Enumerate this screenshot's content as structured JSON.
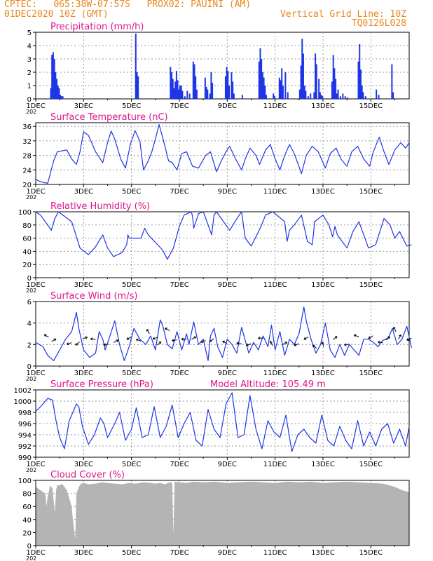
{
  "header": {
    "line1": "CPTEC:   065:38W-07:57S   PROX02: PAUINI (AM)",
    "line2": "01DEC2020 10Z (GMT)",
    "grid_note": "Vertical Grid Line: 10Z",
    "code": "TQ0126L028"
  },
  "colors": {
    "header": "#e8861d",
    "title": "#e0158a",
    "line": "#1e35e6",
    "cloud": "#b4b4b4"
  },
  "x_tick_labels": [
    "1DEC",
    "3DEC",
    "5DEC",
    "7DEC",
    "9DEC",
    "11DEC",
    "13DEC",
    "15DEC"
  ],
  "x_clipped_label": "202",
  "chart_data": [
    {
      "type": "bar",
      "title": "Precipitation (mm/h)",
      "x_unit": "days since 01DEC 10Z",
      "ylim": [
        0,
        5
      ],
      "yticks": [
        0,
        1,
        2,
        3,
        4,
        5
      ],
      "x": [
        0.6,
        0.65,
        0.7,
        0.75,
        0.8,
        0.85,
        0.9,
        0.95,
        1.0,
        1.05,
        1.1,
        4.15,
        4.2,
        4.25,
        5.6,
        5.65,
        5.7,
        5.75,
        5.8,
        5.85,
        5.9,
        5.95,
        6.0,
        6.05,
        6.1,
        6.2,
        6.3,
        6.4,
        6.55,
        6.6,
        6.65,
        6.7,
        7.05,
        7.1,
        7.15,
        7.25,
        7.3,
        7.35,
        7.9,
        7.95,
        8.0,
        8.05,
        8.15,
        8.2,
        8.25,
        8.6,
        9.3,
        9.35,
        9.4,
        9.45,
        9.5,
        9.55,
        9.6,
        9.9,
        9.95,
        10.15,
        10.2,
        10.25,
        10.3,
        10.4,
        10.5,
        11.0,
        11.05,
        11.1,
        11.15,
        11.2,
        11.25,
        11.35,
        11.45,
        11.6,
        11.65,
        11.7,
        11.8,
        11.85,
        11.9,
        11.95,
        12.35,
        12.4,
        12.45,
        12.5,
        12.55,
        12.6,
        12.7,
        12.8,
        12.9,
        13.0,
        13.45,
        13.5,
        13.55,
        13.6,
        13.65,
        13.75,
        14.2,
        14.3,
        14.85,
        14.9
      ],
      "values": [
        0.8,
        3.3,
        3.5,
        3.0,
        2.0,
        1.5,
        1.0,
        0.8,
        0.3,
        0.2,
        0.2,
        4.9,
        2.0,
        1.7,
        2.4,
        2.0,
        1.5,
        0.8,
        1.3,
        2.1,
        1.4,
        0.7,
        1.0,
        1.0,
        0.6,
        0.2,
        0.6,
        0.4,
        2.8,
        2.6,
        1.7,
        0.7,
        1.6,
        0.9,
        0.7,
        0.4,
        2.0,
        1.2,
        1.7,
        2.4,
        2.1,
        1.0,
        2.0,
        1.3,
        0.4,
        0.3,
        2.8,
        3.8,
        3.0,
        2.0,
        1.6,
        1.0,
        0.3,
        0.4,
        0.2,
        1.6,
        1.4,
        2.3,
        1.0,
        2.0,
        0.5,
        0.7,
        2.5,
        4.5,
        3.4,
        1.0,
        0.6,
        0.2,
        0.4,
        0.5,
        3.4,
        2.6,
        1.5,
        0.5,
        0.3,
        0.2,
        1.3,
        3.3,
        2.3,
        1.5,
        0.4,
        0.7,
        0.2,
        0.4,
        0.2,
        0.1,
        2.8,
        4.1,
        2.2,
        1.0,
        0.5,
        0.2,
        0.7,
        0.3,
        2.6,
        0.5
      ]
    },
    {
      "type": "line",
      "title": "Surface Temperature (nC)",
      "x_unit": "days since 01DEC 10Z",
      "ylim": [
        20,
        37
      ],
      "yticks": [
        20,
        24,
        28,
        32,
        36
      ],
      "x": [
        0,
        0.1,
        0.2,
        0.35,
        0.5,
        0.75,
        0.9,
        1.3,
        1.5,
        1.7,
        1.85,
        2.0,
        2.2,
        2.5,
        2.8,
        3.0,
        3.15,
        3.3,
        3.55,
        3.75,
        3.95,
        4.15,
        4.35,
        4.5,
        4.7,
        4.85,
        5.0,
        5.15,
        5.3,
        5.55,
        5.7,
        5.9,
        6.1,
        6.3,
        6.55,
        6.8,
        7.1,
        7.3,
        7.55,
        7.75,
        7.95,
        8.1,
        8.35,
        8.6,
        8.75,
        8.95,
        9.2,
        9.35,
        9.6,
        9.8,
        10.0,
        10.2,
        10.4,
        10.6,
        10.8,
        11.1,
        11.3,
        11.55,
        11.8,
        12.1,
        12.3,
        12.55,
        12.75,
        13.0,
        13.2,
        13.45,
        13.7,
        13.95,
        14.1,
        14.35,
        14.55,
        14.75,
        15.0,
        15.25,
        15.45,
        15.6
      ],
      "values": [
        21.5,
        21.0,
        20.8,
        20.5,
        20.3,
        26.5,
        29.0,
        29.5,
        27.0,
        25.5,
        29.0,
        34.5,
        33.5,
        29.0,
        26.0,
        31.5,
        34.7,
        32.5,
        27.0,
        24.5,
        31.0,
        34.8,
        32.0,
        24.0,
        26.5,
        29.0,
        32.5,
        36.5,
        33.0,
        26.5,
        26.0,
        24.0,
        28.5,
        29.0,
        25.0,
        24.5,
        28.0,
        29.0,
        23.5,
        26.5,
        29.0,
        30.5,
        27.0,
        24.0,
        27.0,
        30.0,
        28.0,
        25.5,
        29.5,
        31.0,
        27.0,
        24.0,
        28.0,
        31.0,
        28.5,
        23.0,
        28.0,
        30.5,
        29.0,
        24.5,
        28.5,
        30.0,
        27.0,
        25.0,
        29.0,
        30.5,
        27.0,
        25.0,
        29.0,
        33.0,
        29.0,
        25.5,
        29.5,
        31.5,
        30.0,
        31.5
      ]
    },
    {
      "type": "line",
      "title": "Relative Humidity (%)",
      "x_unit": "days since 01DEC 10Z",
      "ylim": [
        0,
        100
      ],
      "yticks": [
        0,
        20,
        40,
        60,
        80,
        100
      ],
      "x": [
        0,
        0.2,
        0.5,
        0.65,
        0.8,
        0.95,
        1.5,
        1.7,
        1.85,
        2.2,
        2.5,
        2.8,
        3.0,
        3.25,
        3.6,
        3.8,
        3.85,
        3.9,
        4.4,
        4.55,
        4.7,
        5.3,
        5.5,
        5.75,
        6.0,
        6.2,
        6.5,
        6.55,
        6.6,
        6.8,
        7.0,
        7.15,
        7.35,
        7.45,
        7.55,
        8.1,
        8.5,
        8.6,
        8.75,
        9.0,
        9.2,
        9.4,
        9.6,
        9.9,
        10.4,
        10.5,
        10.6,
        10.8,
        11.1,
        11.35,
        11.55,
        11.6,
        11.65,
        12.0,
        12.25,
        12.4,
        12.5,
        12.6,
        13.0,
        13.25,
        13.5,
        13.9,
        14.2,
        14.55,
        14.8,
        15.0,
        15.2,
        15.5,
        15.7
      ],
      "values": [
        100,
        95,
        80,
        72,
        90,
        100,
        85,
        62,
        45,
        35,
        47,
        65,
        45,
        32,
        38,
        50,
        65,
        60,
        60,
        75,
        65,
        42,
        28,
        45,
        78,
        95,
        100,
        93,
        75,
        97,
        100,
        85,
        65,
        95,
        100,
        72,
        95,
        100,
        60,
        48,
        62,
        77,
        95,
        100,
        85,
        55,
        72,
        80,
        95,
        55,
        50,
        65,
        85,
        95,
        80,
        62,
        78,
        65,
        45,
        70,
        85,
        45,
        50,
        90,
        80,
        60,
        70,
        48,
        50
      ]
    },
    {
      "type": "line",
      "title": "Surface Wind (m/s)",
      "x_unit": "days since 01DEC 10Z",
      "ylim": [
        0,
        6
      ],
      "yticks": [
        0,
        2,
        4,
        6
      ],
      "x": [
        0,
        0.3,
        0.5,
        0.75,
        1.0,
        1.25,
        1.5,
        1.7,
        1.8,
        2.0,
        2.25,
        2.5,
        2.65,
        2.8,
        2.9,
        3.1,
        3.3,
        3.5,
        3.7,
        3.9,
        4.1,
        4.35,
        4.6,
        4.8,
        5.0,
        5.2,
        5.3,
        5.5,
        5.7,
        5.9,
        6.1,
        6.3,
        6.4,
        6.6,
        6.8,
        7.0,
        7.2,
        7.3,
        7.45,
        7.6,
        7.8,
        8.0,
        8.2,
        8.4,
        8.6,
        8.9,
        9.1,
        9.3,
        9.5,
        9.7,
        9.85,
        10.0,
        10.2,
        10.4,
        10.6,
        10.8,
        11.0,
        11.2,
        11.3,
        11.5,
        11.7,
        11.9,
        12.1,
        12.3,
        12.5,
        12.7,
        12.9,
        13.1,
        13.3,
        13.5,
        13.7,
        13.9,
        14.1,
        14.3,
        14.5,
        14.7,
        14.9,
        15.1,
        15.3,
        15.5,
        15.7
      ],
      "values": [
        2.2,
        1.8,
        1.0,
        0.5,
        1.5,
        2.5,
        3.2,
        5.0,
        3.5,
        1.5,
        0.8,
        1.2,
        3.2,
        2.5,
        1.5,
        2.8,
        4.2,
        2.0,
        0.5,
        1.8,
        3.5,
        2.5,
        2.0,
        2.8,
        1.5,
        4.3,
        3.8,
        2.0,
        1.6,
        3.2,
        1.5,
        3.0,
        2.0,
        4.1,
        2.0,
        2.5,
        0.5,
        2.8,
        3.5,
        1.8,
        0.8,
        2.5,
        2.0,
        1.2,
        3.6,
        1.2,
        2.2,
        1.5,
        2.8,
        1.8,
        3.8,
        1.5,
        3.2,
        1.0,
        2.5,
        2.0,
        3.0,
        5.5,
        4.2,
        2.5,
        1.2,
        2.0,
        4.0,
        1.5,
        0.8,
        2.0,
        1.0,
        2.0,
        1.5,
        1.0,
        2.5,
        2.5,
        2.2,
        1.8,
        2.4,
        2.5,
        3.5,
        2.0,
        2.5,
        3.7,
        1.7
      ]
    },
    {
      "type": "line",
      "title": "Surface Pressure (hPa)",
      "annotation": "Model Altitude: 105.49 m",
      "x_unit": "days since 01DEC 10Z",
      "ylim": [
        990,
        1002
      ],
      "yticks": [
        990,
        992,
        994,
        996,
        998,
        1000,
        1002
      ],
      "x": [
        0,
        0.2,
        0.5,
        0.7,
        0.85,
        1.0,
        1.2,
        1.4,
        1.7,
        1.8,
        1.95,
        2.2,
        2.45,
        2.7,
        2.85,
        3.0,
        3.3,
        3.5,
        3.75,
        4.0,
        4.2,
        4.45,
        4.7,
        4.95,
        5.2,
        5.45,
        5.7,
        5.95,
        6.2,
        6.45,
        6.7,
        6.95,
        7.2,
        7.45,
        7.7,
        7.95,
        8.2,
        8.45,
        8.7,
        8.95,
        9.2,
        9.45,
        9.7,
        9.95,
        10.2,
        10.45,
        10.7,
        10.95,
        11.2,
        11.45,
        11.7,
        11.95,
        12.2,
        12.45,
        12.7,
        12.95,
        13.2,
        13.45,
        13.7,
        13.95,
        14.2,
        14.45,
        14.7,
        14.95,
        15.2,
        15.45,
        15.6
      ],
      "values": [
        998.2,
        999.0,
        1000.5,
        1000.2,
        996.5,
        993.5,
        991.5,
        996.5,
        999.5,
        999.0,
        995.5,
        992.3,
        994.0,
        997.0,
        996.0,
        993.5,
        996.0,
        998.0,
        993.0,
        995.0,
        998.8,
        993.5,
        994.0,
        999.0,
        993.5,
        995.5,
        999.3,
        993.5,
        996.0,
        998.0,
        993.0,
        992.0,
        998.5,
        995.0,
        993.5,
        999.5,
        1001.5,
        993.5,
        994.0,
        1001.0,
        995.0,
        991.5,
        996.5,
        994.5,
        993.5,
        997.5,
        991.0,
        994.0,
        995.0,
        993.5,
        992.5,
        997.5,
        993.0,
        992.0,
        995.5,
        993.0,
        991.5,
        996.5,
        992.0,
        994.5,
        992.0,
        995.0,
        996.0,
        992.5,
        995.0,
        992.0,
        995.5
      ]
    },
    {
      "type": "area",
      "title": "Cloud Cover (%)",
      "x_unit": "days since 01DEC 10Z",
      "ylim": [
        0,
        100
      ],
      "yticks": [
        0,
        20,
        40,
        60,
        80,
        100
      ],
      "x": [
        0,
        0.2,
        0.4,
        0.45,
        0.5,
        0.6,
        0.7,
        0.8,
        0.85,
        0.9,
        1.0,
        1.1,
        1.3,
        1.5,
        1.55,
        1.6,
        1.65,
        1.7,
        1.8,
        1.9,
        2.0,
        2.2,
        2.5,
        2.8,
        3.0,
        3.3,
        3.6,
        3.9,
        4.2,
        4.5,
        4.8,
        5.0,
        5.2,
        5.4,
        5.6,
        5.7,
        5.75,
        5.8,
        6.0,
        6.3,
        6.6,
        7.0,
        7.5,
        8.0,
        8.5,
        9.0,
        9.5,
        10.0,
        10.5,
        11.0,
        11.5,
        12.0,
        12.5,
        13.0,
        13.5,
        14.0,
        14.5,
        14.8,
        15.0,
        15.3,
        15.6
      ],
      "values": [
        90,
        85,
        80,
        60,
        75,
        92,
        88,
        50,
        85,
        93,
        92,
        95,
        85,
        60,
        40,
        25,
        10,
        80,
        90,
        95,
        96,
        94,
        95,
        97,
        96,
        95,
        94,
        96,
        95,
        97,
        96,
        95,
        96,
        94,
        97,
        96,
        15,
        98,
        97,
        96,
        98,
        97,
        98,
        96,
        97,
        98,
        97,
        96,
        98,
        97,
        98,
        96,
        97,
        98,
        97,
        96,
        95,
        92,
        90,
        85,
        82
      ]
    }
  ],
  "wind_arrows": {
    "x": [
      0.45,
      0.75,
      1.4,
      1.75,
      2.05,
      2.4,
      2.95,
      3.35,
      3.9,
      4.3,
      4.7,
      5.0,
      5.15,
      5.5,
      5.8,
      6.2,
      6.6,
      7.0,
      7.35,
      7.9,
      8.5,
      8.9,
      9.4,
      9.85,
      10.4,
      10.9,
      11.3,
      11.65,
      12.0,
      12.5,
      13.0,
      13.4,
      14.0,
      14.4,
      14.7,
      15.0,
      15.2,
      15.6
    ],
    "values": [
      2.8,
      2.4,
      2.1,
      2.1,
      2.6,
      2.5,
      2.0,
      2.3,
      2.6,
      2.4,
      3.2,
      2.6,
      2.1,
      3.4,
      2.4,
      2.5,
      2.6,
      2.3,
      2.4,
      2.2,
      2.1,
      2.0,
      2.6,
      2.1,
      2.1,
      2.0,
      2.6,
      1.8,
      2.0,
      2.6,
      2.0,
      2.8,
      2.7,
      2.2,
      2.6,
      3.4,
      2.7,
      2.5
    ],
    "dir_deg": [
      150,
      30,
      200,
      220,
      20,
      170,
      190,
      30,
      210,
      160,
      120,
      200,
      40,
      150,
      190,
      180,
      30,
      200,
      210,
      150,
      170,
      200,
      180,
      120,
      30,
      200,
      210,
      140,
      110,
      40,
      190,
      160,
      210,
      170,
      30,
      120,
      60,
      200
    ]
  }
}
